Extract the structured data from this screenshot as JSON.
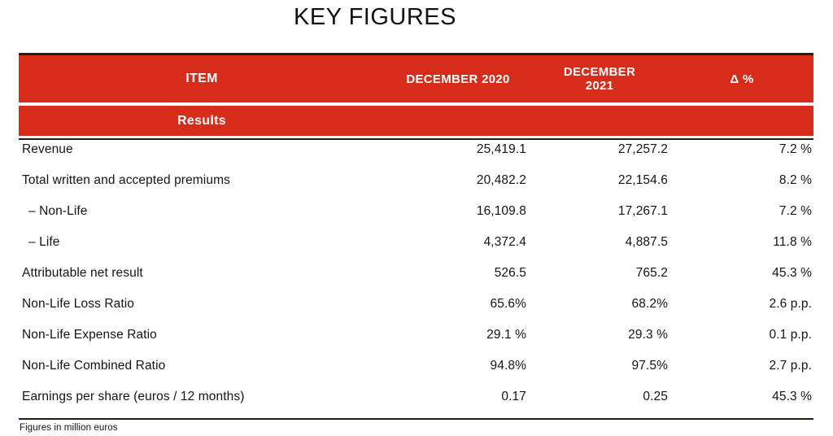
{
  "title": "KEY FIGURES",
  "footnote": "Figures in million euros",
  "colors": {
    "accent_red": "#d62c19",
    "line_dark": "#2a1b13",
    "header_text": "#ffffff",
    "body_text": "#141414"
  },
  "table": {
    "columns": [
      "ITEM",
      "DECEMBER 2020",
      "DECEMBER 2021",
      "Δ %"
    ],
    "section_label": "Results",
    "rows": [
      {
        "item": "Revenue",
        "dec2020": "25,419.1",
        "dec2021": "27,257.2",
        "delta": "7.2 %"
      },
      {
        "item": "Total written and accepted premiums",
        "dec2020": "20,482.2",
        "dec2021": "22,154.6",
        "delta": "8.2 %"
      },
      {
        "item": "– Non-Life",
        "dec2020": "16,109.8",
        "dec2021": "17,267.1",
        "delta": "7.2 %"
      },
      {
        "item": "– Life",
        "dec2020": "4,372.4",
        "dec2021": "4,887.5",
        "delta": "11.8 %"
      },
      {
        "item": "Attributable net result",
        "dec2020": "526.5",
        "dec2021": "765.2",
        "delta": "45.3 %"
      },
      {
        "item": "Non-Life Loss Ratio",
        "dec2020": "65.6%",
        "dec2021": "68.2%",
        "delta": "2.6 p.p."
      },
      {
        "item": "Non-Life Expense Ratio",
        "dec2020": "29.1 %",
        "dec2021": "29.3 %",
        "delta": "0.1 p.p."
      },
      {
        "item": "Non-Life Combined Ratio",
        "dec2020": "94.8%",
        "dec2021": "97.5%",
        "delta": "2.7 p.p."
      },
      {
        "item": "Earnings per share (euros / 12 months)",
        "dec2020": "0.17",
        "dec2021": "0.25",
        "delta": "45.3 %"
      }
    ]
  }
}
